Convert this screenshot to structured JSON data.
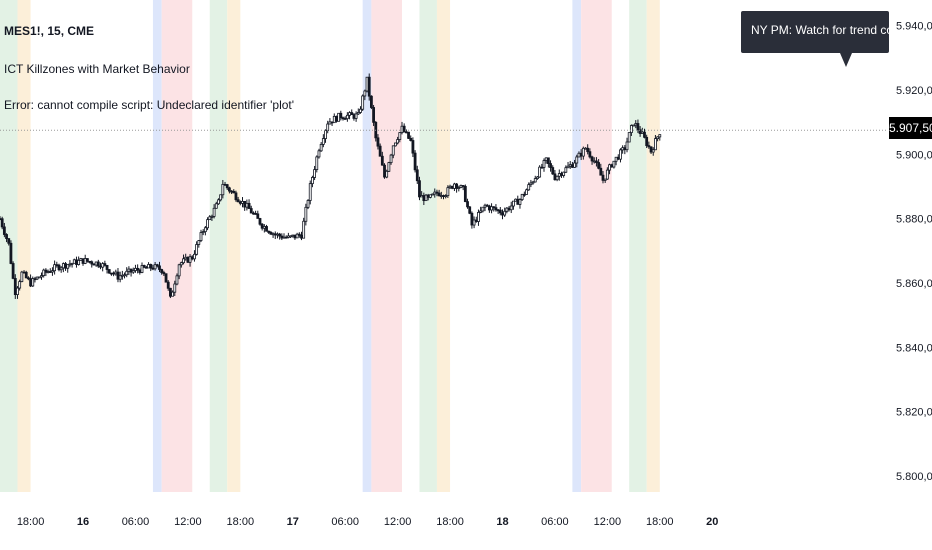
{
  "header": {
    "symbol": "MES1!, 15, CME",
    "indicator": "ICT Killzones with Market Behavior",
    "error": "Error: cannot compile script: Undeclared identifier 'plot'"
  },
  "tooltip": {
    "text": "NY PM: Watch for trend continuation and"
  },
  "current_price_label": "5.907,50",
  "colors": {
    "green_zone": "#e3f2e5",
    "orange_zone": "#fcefd9",
    "blue_zone": "#dde6fb",
    "red_zone": "#fce3e5",
    "candle": "#131722",
    "price_line": "#9a9a9a"
  },
  "chart_data": {
    "type": "candlestick",
    "y_range": [
      5795,
      5948
    ],
    "y_ticks": [
      "5.800,00",
      "5.820,00",
      "5.840,00",
      "5.860,00",
      "5.880,00",
      "5.900,00",
      "5.920,00",
      "5.940,00"
    ],
    "y_tick_values": [
      5800,
      5820,
      5840,
      5860,
      5880,
      5900,
      5920,
      5940
    ],
    "x_range": [
      14.5,
      116
    ],
    "x_ticks": [
      "18:00",
      "16",
      "06:00",
      "12:00",
      "18:00",
      "17",
      "06:00",
      "12:00",
      "18:00",
      "18",
      "06:00",
      "12:00",
      "18:00",
      "20"
    ],
    "x_tick_values": [
      18,
      24,
      30,
      36,
      42,
      48,
      54,
      60,
      66,
      72,
      78,
      84,
      90,
      96
    ],
    "current_price": 5907.5,
    "killzones": [
      {
        "zone": "green",
        "x": [
          14.5,
          16.5
        ]
      },
      {
        "zone": "orange",
        "x": [
          16.5,
          18
        ]
      },
      {
        "zone": "blue",
        "x": [
          32,
          33
        ]
      },
      {
        "zone": "red",
        "x": [
          33,
          36.5
        ]
      },
      {
        "zone": "green",
        "x": [
          38.5,
          40.5
        ]
      },
      {
        "zone": "orange",
        "x": [
          40.5,
          42
        ]
      },
      {
        "zone": "blue",
        "x": [
          56,
          57
        ]
      },
      {
        "zone": "red",
        "x": [
          57,
          60.5
        ]
      },
      {
        "zone": "green",
        "x": [
          62.5,
          64.5
        ]
      },
      {
        "zone": "orange",
        "x": [
          64.5,
          66
        ]
      },
      {
        "zone": "blue",
        "x": [
          80,
          81
        ]
      },
      {
        "zone": "red",
        "x": [
          81,
          84.5
        ]
      },
      {
        "zone": "green",
        "x": [
          86.5,
          88.5
        ]
      },
      {
        "zone": "orange",
        "x": [
          88.5,
          90
        ]
      }
    ],
    "price_path": [
      [
        14.5,
        5880
      ],
      [
        15.5,
        5872
      ],
      [
        16.2,
        5857
      ],
      [
        17,
        5863
      ],
      [
        18,
        5860
      ],
      [
        19.5,
        5863
      ],
      [
        21,
        5865
      ],
      [
        24,
        5867
      ],
      [
        26,
        5866
      ],
      [
        28,
        5862
      ],
      [
        30,
        5864
      ],
      [
        32,
        5865
      ],
      [
        33.2,
        5864
      ],
      [
        34,
        5855
      ],
      [
        35,
        5866
      ],
      [
        36.5,
        5868
      ],
      [
        38,
        5878
      ],
      [
        39.5,
        5885
      ],
      [
        40,
        5891
      ],
      [
        41.5,
        5887
      ],
      [
        43,
        5883
      ],
      [
        44.5,
        5878
      ],
      [
        46,
        5875
      ],
      [
        47.5,
        5874
      ],
      [
        49,
        5875
      ],
      [
        50,
        5890
      ],
      [
        51,
        5902
      ],
      [
        52,
        5910
      ],
      [
        53.5,
        5912
      ],
      [
        55.5,
        5912
      ],
      [
        56.5,
        5923
      ],
      [
        57.5,
        5905
      ],
      [
        58.5,
        5893
      ],
      [
        59.5,
        5903
      ],
      [
        60.5,
        5908
      ],
      [
        61.5,
        5904
      ],
      [
        62.5,
        5887
      ],
      [
        63.5,
        5886
      ],
      [
        64.5,
        5888
      ],
      [
        65.5,
        5888
      ],
      [
        66.5,
        5891
      ],
      [
        67.5,
        5889
      ],
      [
        68.5,
        5878
      ],
      [
        70,
        5884
      ],
      [
        72,
        5882
      ],
      [
        74,
        5886
      ],
      [
        76,
        5894
      ],
      [
        77,
        5898
      ],
      [
        78,
        5893
      ],
      [
        80,
        5897
      ],
      [
        81.5,
        5902
      ],
      [
        82.5,
        5898
      ],
      [
        83.5,
        5892
      ],
      [
        84.5,
        5897
      ],
      [
        86,
        5902
      ],
      [
        87,
        5910
      ],
      [
        88,
        5906
      ],
      [
        89,
        5901
      ],
      [
        90,
        5907
      ]
    ]
  }
}
